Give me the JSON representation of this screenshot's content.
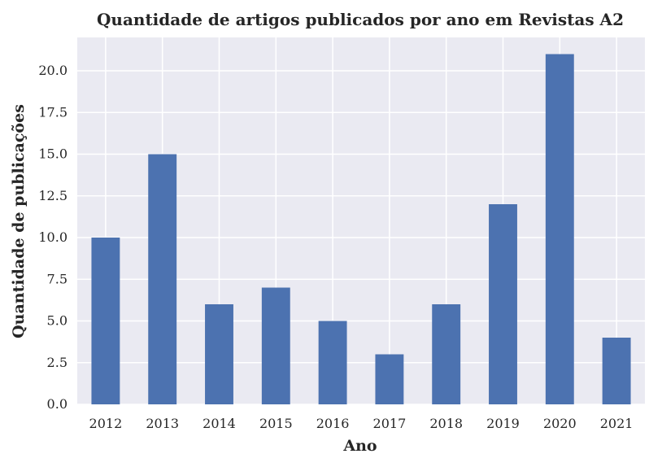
{
  "chart_data": {
    "type": "bar",
    "title": "Quantidade de artigos publicados por ano em Revistas A2",
    "xlabel": "Ano",
    "ylabel": "Quantidade de publicações",
    "categories": [
      "2012",
      "2013",
      "2014",
      "2015",
      "2016",
      "2017",
      "2018",
      "2019",
      "2020",
      "2021"
    ],
    "values": [
      10,
      15,
      6,
      7,
      5,
      3,
      6,
      12,
      21,
      4
    ],
    "ylim": [
      0,
      22
    ],
    "yticks": [
      "0.0",
      "2.5",
      "5.0",
      "7.5",
      "10.0",
      "12.5",
      "15.0",
      "17.5",
      "20.0"
    ],
    "grid": true,
    "colors": {
      "bar": "#4c72b0",
      "background": "#eaeaf2",
      "grid": "#ffffff"
    }
  }
}
